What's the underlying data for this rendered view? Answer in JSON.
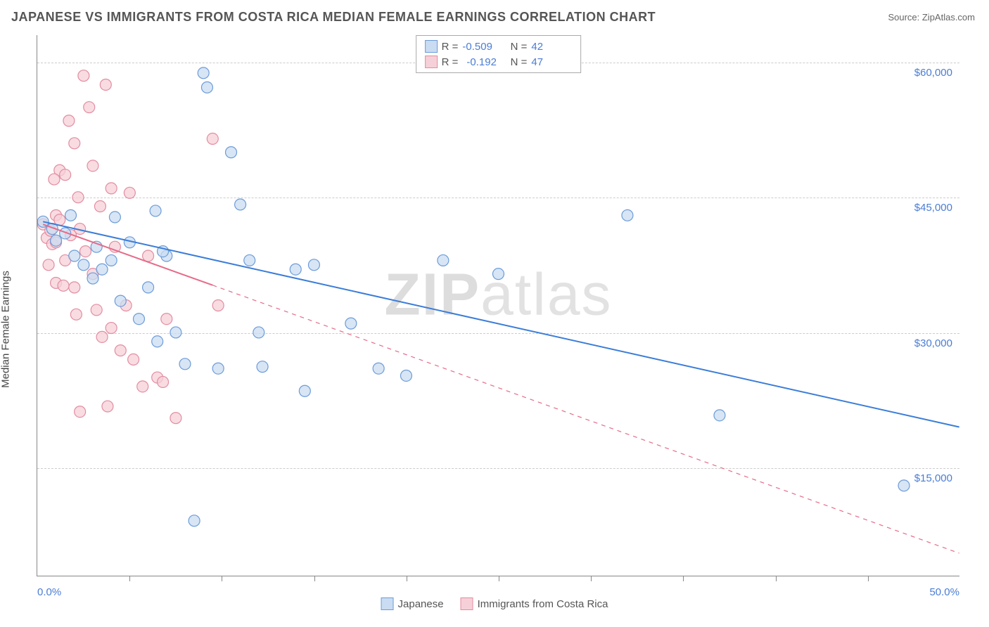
{
  "header": {
    "title": "JAPANESE VS IMMIGRANTS FROM COSTA RICA MEDIAN FEMALE EARNINGS CORRELATION CHART",
    "source_prefix": "Source: ",
    "source_name": "ZipAtlas.com"
  },
  "chart": {
    "type": "scatter",
    "ylabel": "Median Female Earnings",
    "xlim": [
      0,
      50
    ],
    "ylim": [
      3000,
      63000
    ],
    "x_ticks_pct": [
      5,
      10,
      15,
      20,
      25,
      30,
      35,
      40,
      45
    ],
    "x_axis_labels": [
      {
        "pct": 0,
        "text": "0.0%"
      },
      {
        "pct": 50,
        "text": "50.0%"
      }
    ],
    "y_gridlines": [
      15000,
      30000,
      45000,
      60000
    ],
    "y_tick_labels": [
      {
        "val": 15000,
        "text": "$15,000"
      },
      {
        "val": 30000,
        "text": "$30,000"
      },
      {
        "val": 45000,
        "text": "$45,000"
      },
      {
        "val": 60000,
        "text": "$60,000"
      }
    ],
    "background_color": "#ffffff",
    "grid_color": "#cccccc",
    "axis_color": "#888888",
    "text_color": "#555555",
    "tick_label_color": "#4a7dd4",
    "marker_radius": 8,
    "marker_stroke_width": 1.2,
    "line_width": 2,
    "series": [
      {
        "name": "Japanese",
        "fill": "#c9dcf2",
        "stroke": "#6c9bd9",
        "line_color": "#3b7dd8",
        "line_dash": "none",
        "R": "-0.509",
        "N": "42",
        "trend_solid_range": [
          0.3,
          50
        ],
        "trend": {
          "x1": 0.3,
          "y1": 42300,
          "x2": 50,
          "y2": 19500
        },
        "points": [
          [
            0.3,
            42300
          ],
          [
            0.8,
            41500
          ],
          [
            1.0,
            40200
          ],
          [
            1.5,
            41000
          ],
          [
            2.0,
            38500
          ],
          [
            2.5,
            37500
          ],
          [
            1.8,
            43000
          ],
          [
            3.0,
            36000
          ],
          [
            3.5,
            37000
          ],
          [
            4.0,
            38000
          ],
          [
            4.5,
            33500
          ],
          [
            5.0,
            40000
          ],
          [
            5.5,
            31500
          ],
          [
            6.0,
            35000
          ],
          [
            6.4,
            43500
          ],
          [
            6.5,
            29000
          ],
          [
            7.0,
            38500
          ],
          [
            4.2,
            42800
          ],
          [
            7.5,
            30000
          ],
          [
            8.0,
            26500
          ],
          [
            8.5,
            9100
          ],
          [
            9.0,
            58800
          ],
          [
            9.2,
            57200
          ],
          [
            9.8,
            26000
          ],
          [
            10.5,
            50000
          ],
          [
            11.0,
            44200
          ],
          [
            11.5,
            38000
          ],
          [
            12.0,
            30000
          ],
          [
            12.2,
            26200
          ],
          [
            14.0,
            37000
          ],
          [
            14.5,
            23500
          ],
          [
            15.0,
            37500
          ],
          [
            17.0,
            31000
          ],
          [
            18.5,
            26000
          ],
          [
            20.0,
            25200
          ],
          [
            22.0,
            38000
          ],
          [
            25.0,
            36500
          ],
          [
            32.0,
            43000
          ],
          [
            37.0,
            20800
          ],
          [
            47.0,
            13000
          ],
          [
            6.8,
            39000
          ],
          [
            3.2,
            39500
          ]
        ]
      },
      {
        "name": "Immigrants from Costa Rica",
        "fill": "#f6d0d8",
        "stroke": "#e38ca0",
        "line_color": "#e66b88",
        "line_dash": "dashed",
        "R": "-0.192",
        "N": "47",
        "trend_solid_range": [
          0.3,
          9.5
        ],
        "trend": {
          "x1": 0.3,
          "y1": 42000,
          "x2": 50,
          "y2": 5500
        },
        "points": [
          [
            0.3,
            42000
          ],
          [
            0.5,
            40500
          ],
          [
            0.7,
            41300
          ],
          [
            0.8,
            39800
          ],
          [
            1.0,
            43000
          ],
          [
            1.0,
            40000
          ],
          [
            1.2,
            48000
          ],
          [
            1.2,
            42500
          ],
          [
            1.5,
            47500
          ],
          [
            1.5,
            38000
          ],
          [
            1.7,
            53500
          ],
          [
            1.8,
            40800
          ],
          [
            2.0,
            51000
          ],
          [
            2.0,
            35000
          ],
          [
            2.2,
            45000
          ],
          [
            2.3,
            41500
          ],
          [
            2.5,
            58500
          ],
          [
            2.6,
            39000
          ],
          [
            2.8,
            55000
          ],
          [
            3.0,
            48500
          ],
          [
            3.0,
            36500
          ],
          [
            3.2,
            32500
          ],
          [
            3.4,
            44000
          ],
          [
            3.5,
            29500
          ],
          [
            3.7,
            57500
          ],
          [
            4.0,
            46000
          ],
          [
            4.0,
            30500
          ],
          [
            4.2,
            39500
          ],
          [
            4.5,
            28000
          ],
          [
            4.8,
            33000
          ],
          [
            5.0,
            45500
          ],
          [
            5.2,
            27000
          ],
          [
            5.7,
            24000
          ],
          [
            6.0,
            38500
          ],
          [
            6.5,
            25000
          ],
          [
            6.8,
            24500
          ],
          [
            7.0,
            31500
          ],
          [
            7.5,
            20500
          ],
          [
            1.0,
            35500
          ],
          [
            0.6,
            37500
          ],
          [
            9.5,
            51500
          ],
          [
            9.8,
            33000
          ],
          [
            2.3,
            21200
          ],
          [
            3.8,
            21800
          ],
          [
            2.1,
            32000
          ],
          [
            1.4,
            35200
          ],
          [
            0.9,
            47000
          ]
        ]
      }
    ],
    "watermark": {
      "bold": "ZIP",
      "thin": "atlas"
    }
  },
  "legend_bottom": [
    {
      "label": "Japanese",
      "fill": "#c9dcf2",
      "stroke": "#6c9bd9"
    },
    {
      "label": "Immigrants from Costa Rica",
      "fill": "#f6d0d8",
      "stroke": "#e38ca0"
    }
  ]
}
